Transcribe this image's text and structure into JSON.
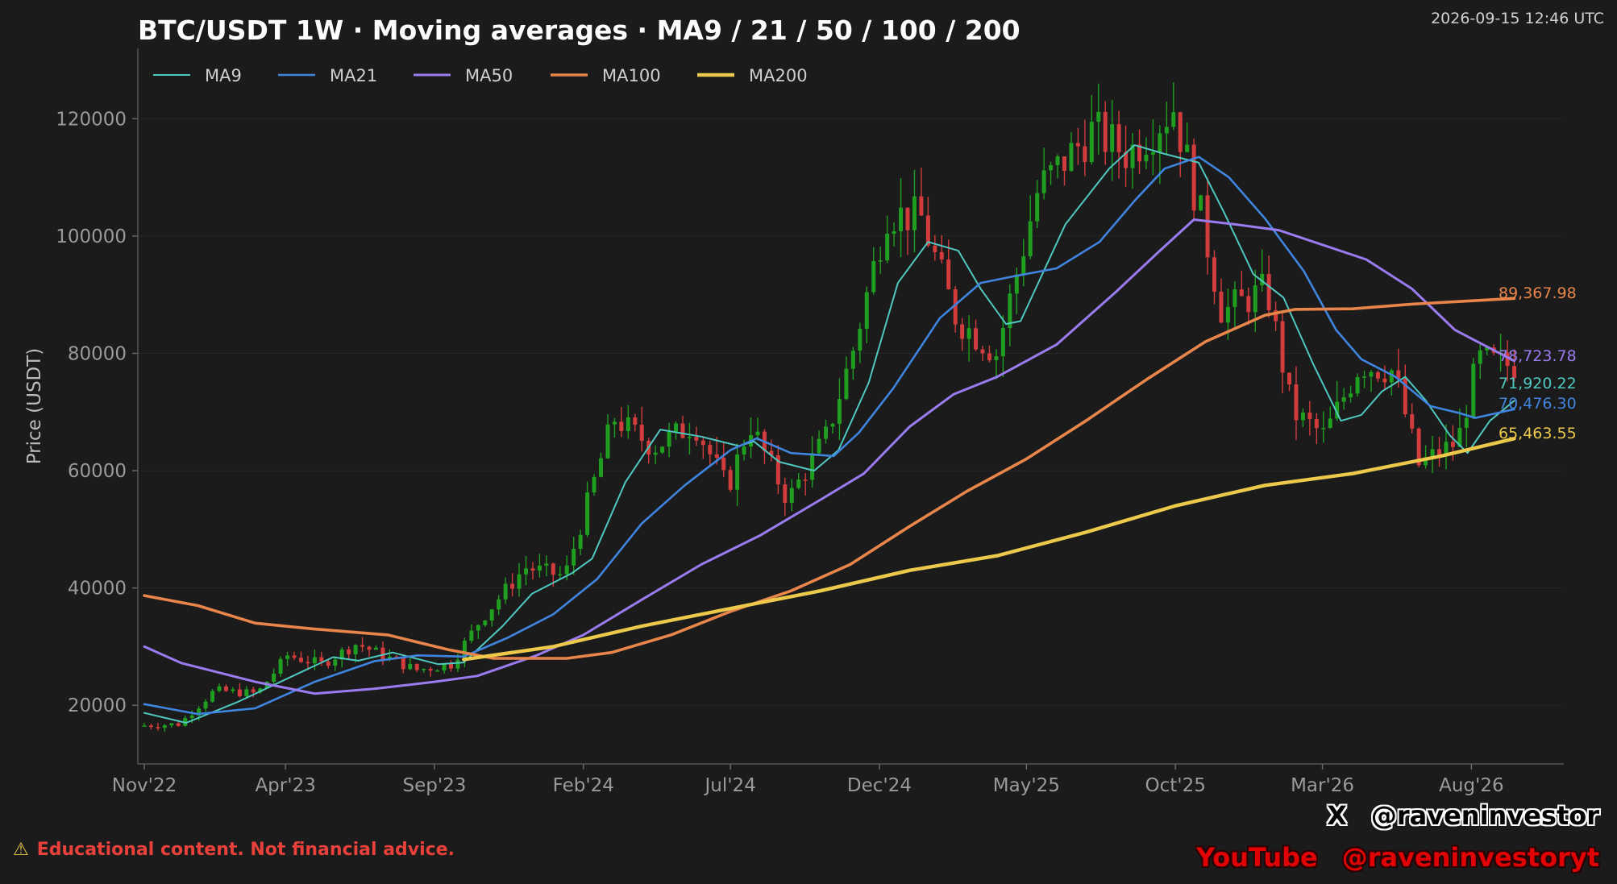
{
  "header": {
    "title": "BTC/USDT 1W · Moving averages · MA9 / 21 / 50 / 100 / 200",
    "timestamp": "2026-09-15 12:46 UTC"
  },
  "footer": {
    "warning_icon": "⚠",
    "disclaimer": "Educational content. Not financial advice.",
    "x_logo": "X",
    "x_handle": "@raveninvestor",
    "youtube_label": "YouTube",
    "youtube_handle": "@raveninvestoryt"
  },
  "chart_data": {
    "type": "line",
    "subtype": "candlestick with moving averages",
    "ylabel": "Price (USDT)",
    "xlabel": "",
    "ylim": [
      10000,
      132000
    ],
    "yticks": [
      20000,
      40000,
      60000,
      80000,
      100000,
      120000
    ],
    "x_start": "2022-11-07",
    "x_end": "2026-09-21",
    "xticks": [
      {
        "date": "2022-11-07",
        "label": "Nov'22"
      },
      {
        "date": "2023-04-01",
        "label": "Apr'23"
      },
      {
        "date": "2023-09-01",
        "label": "Sep'23"
      },
      {
        "date": "2024-02-01",
        "label": "Feb'24"
      },
      {
        "date": "2024-07-01",
        "label": "Jul'24"
      },
      {
        "date": "2024-12-01",
        "label": "Dec'24"
      },
      {
        "date": "2025-05-01",
        "label": "May'25"
      },
      {
        "date": "2025-10-01",
        "label": "Oct'25"
      },
      {
        "date": "2026-03-01",
        "label": "Mar'26"
      },
      {
        "date": "2026-08-01",
        "label": "Aug'26"
      }
    ],
    "grid": true,
    "legend_position": "top-left",
    "candle_up_color": "#1f9e1f",
    "candle_down_color": "#d23c3c",
    "price_anchors": [
      {
        "date": "2022-11-07",
        "value": 16500
      },
      {
        "date": "2022-12-20",
        "value": 16800
      },
      {
        "date": "2023-01-25",
        "value": 22500
      },
      {
        "date": "2023-03-10",
        "value": 22000
      },
      {
        "date": "2023-04-10",
        "value": 28500
      },
      {
        "date": "2023-05-15",
        "value": 27000
      },
      {
        "date": "2023-06-20",
        "value": 30500
      },
      {
        "date": "2023-08-20",
        "value": 26000
      },
      {
        "date": "2023-09-25",
        "value": 27000
      },
      {
        "date": "2023-10-25",
        "value": 34500
      },
      {
        "date": "2023-12-10",
        "value": 43500
      },
      {
        "date": "2024-01-20",
        "value": 42000
      },
      {
        "date": "2024-03-10",
        "value": 69000
      },
      {
        "date": "2024-04-20",
        "value": 64000
      },
      {
        "date": "2024-06-01",
        "value": 68000
      },
      {
        "date": "2024-07-05",
        "value": 57000
      },
      {
        "date": "2024-07-28",
        "value": 68000
      },
      {
        "date": "2024-09-05",
        "value": 55000
      },
      {
        "date": "2024-10-15",
        "value": 66000
      },
      {
        "date": "2024-11-10",
        "value": 80000
      },
      {
        "date": "2024-12-16",
        "value": 104000
      },
      {
        "date": "2025-01-20",
        "value": 103000
      },
      {
        "date": "2025-02-25",
        "value": 86000
      },
      {
        "date": "2025-04-07",
        "value": 80000
      },
      {
        "date": "2025-05-20",
        "value": 108000
      },
      {
        "date": "2025-07-15",
        "value": 118000
      },
      {
        "date": "2025-08-20",
        "value": 114000
      },
      {
        "date": "2025-10-06",
        "value": 122000
      },
      {
        "date": "2025-11-05",
        "value": 102000
      },
      {
        "date": "2025-11-25",
        "value": 87000
      },
      {
        "date": "2026-01-10",
        "value": 91000
      },
      {
        "date": "2026-02-05",
        "value": 70000
      },
      {
        "date": "2026-03-10",
        "value": 66000
      },
      {
        "date": "2026-04-15",
        "value": 78000
      },
      {
        "date": "2026-05-20",
        "value": 77000
      },
      {
        "date": "2026-06-15",
        "value": 61000
      },
      {
        "date": "2026-07-25",
        "value": 65000
      },
      {
        "date": "2026-08-15",
        "value": 79000
      },
      {
        "date": "2026-09-14",
        "value": 78000
      }
    ],
    "series": [
      {
        "name": "MA9",
        "color": "#4fc8c0",
        "last_label": "71,920.22",
        "points": [
          {
            "date": "2022-11-07",
            "value": 18700
          },
          {
            "date": "2022-12-20",
            "value": 17000
          },
          {
            "date": "2023-02-10",
            "value": 20500
          },
          {
            "date": "2023-04-15",
            "value": 25500
          },
          {
            "date": "2023-05-20",
            "value": 28200
          },
          {
            "date": "2023-06-15",
            "value": 27600
          },
          {
            "date": "2023-07-20",
            "value": 29000
          },
          {
            "date": "2023-09-05",
            "value": 27000
          },
          {
            "date": "2023-10-01",
            "value": 27300
          },
          {
            "date": "2023-11-10",
            "value": 33500
          },
          {
            "date": "2023-12-10",
            "value": 39000
          },
          {
            "date": "2024-01-20",
            "value": 42500
          },
          {
            "date": "2024-02-10",
            "value": 45000
          },
          {
            "date": "2024-03-15",
            "value": 58000
          },
          {
            "date": "2024-04-20",
            "value": 67000
          },
          {
            "date": "2024-06-01",
            "value": 65800
          },
          {
            "date": "2024-07-10",
            "value": 64200
          },
          {
            "date": "2024-07-25",
            "value": 65000
          },
          {
            "date": "2024-08-20",
            "value": 61500
          },
          {
            "date": "2024-09-25",
            "value": 60000
          },
          {
            "date": "2024-10-20",
            "value": 63500
          },
          {
            "date": "2024-11-20",
            "value": 75000
          },
          {
            "date": "2024-12-20",
            "value": 92000
          },
          {
            "date": "2025-01-20",
            "value": 99000
          },
          {
            "date": "2025-02-20",
            "value": 97500
          },
          {
            "date": "2025-03-15",
            "value": 91000
          },
          {
            "date": "2025-04-10",
            "value": 85000
          },
          {
            "date": "2025-04-25",
            "value": 85500
          },
          {
            "date": "2025-06-10",
            "value": 102000
          },
          {
            "date": "2025-07-25",
            "value": 111500
          },
          {
            "date": "2025-08-20",
            "value": 115500
          },
          {
            "date": "2025-09-20",
            "value": 114000
          },
          {
            "date": "2025-10-25",
            "value": 112500
          },
          {
            "date": "2025-11-20",
            "value": 104000
          },
          {
            "date": "2025-12-20",
            "value": 93500
          },
          {
            "date": "2026-01-20",
            "value": 89500
          },
          {
            "date": "2026-02-20",
            "value": 78000
          },
          {
            "date": "2026-03-20",
            "value": 68500
          },
          {
            "date": "2026-04-10",
            "value": 69500
          },
          {
            "date": "2026-05-01",
            "value": 73500
          },
          {
            "date": "2026-05-25",
            "value": 76000
          },
          {
            "date": "2026-06-15",
            "value": 72000
          },
          {
            "date": "2026-07-10",
            "value": 66000
          },
          {
            "date": "2026-07-28",
            "value": 63000
          },
          {
            "date": "2026-08-20",
            "value": 68500
          },
          {
            "date": "2026-09-14",
            "value": 71920.22
          }
        ]
      },
      {
        "name": "MA21",
        "color": "#3f84de",
        "last_label": "70,476.30",
        "points": [
          {
            "date": "2022-11-07",
            "value": 20200
          },
          {
            "date": "2023-01-01",
            "value": 18500
          },
          {
            "date": "2023-03-01",
            "value": 19500
          },
          {
            "date": "2023-05-01",
            "value": 24000
          },
          {
            "date": "2023-07-01",
            "value": 27500
          },
          {
            "date": "2023-08-15",
            "value": 28500
          },
          {
            "date": "2023-10-01",
            "value": 28300
          },
          {
            "date": "2023-11-15",
            "value": 31500
          },
          {
            "date": "2024-01-01",
            "value": 35500
          },
          {
            "date": "2024-02-15",
            "value": 41500
          },
          {
            "date": "2024-04-01",
            "value": 51000
          },
          {
            "date": "2024-05-15",
            "value": 57500
          },
          {
            "date": "2024-07-01",
            "value": 63500
          },
          {
            "date": "2024-07-28",
            "value": 65500
          },
          {
            "date": "2024-09-01",
            "value": 63000
          },
          {
            "date": "2024-10-15",
            "value": 62500
          },
          {
            "date": "2024-11-10",
            "value": 66500
          },
          {
            "date": "2024-12-15",
            "value": 74000
          },
          {
            "date": "2025-02-01",
            "value": 86000
          },
          {
            "date": "2025-03-15",
            "value": 92000
          },
          {
            "date": "2025-04-20",
            "value": 93200
          },
          {
            "date": "2025-06-01",
            "value": 94500
          },
          {
            "date": "2025-07-15",
            "value": 99000
          },
          {
            "date": "2025-08-20",
            "value": 106000
          },
          {
            "date": "2025-09-20",
            "value": 111500
          },
          {
            "date": "2025-10-25",
            "value": 113500
          },
          {
            "date": "2025-11-25",
            "value": 110000
          },
          {
            "date": "2026-01-01",
            "value": 103000
          },
          {
            "date": "2026-02-10",
            "value": 94000
          },
          {
            "date": "2026-03-15",
            "value": 84000
          },
          {
            "date": "2026-04-10",
            "value": 79000
          },
          {
            "date": "2026-05-15",
            "value": 76000
          },
          {
            "date": "2026-06-20",
            "value": 71000
          },
          {
            "date": "2026-07-20",
            "value": 69800
          },
          {
            "date": "2026-08-05",
            "value": 69000
          },
          {
            "date": "2026-09-14",
            "value": 70476.3
          }
        ]
      },
      {
        "name": "MA50",
        "color": "#9b7cf0",
        "last_label": "78,723.78",
        "points": [
          {
            "date": "2022-11-07",
            "value": 30000
          },
          {
            "date": "2022-12-15",
            "value": 27200
          },
          {
            "date": "2023-03-01",
            "value": 24000
          },
          {
            "date": "2023-05-01",
            "value": 22000
          },
          {
            "date": "2023-07-01",
            "value": 22800
          },
          {
            "date": "2023-09-01",
            "value": 24000
          },
          {
            "date": "2023-10-15",
            "value": 25000
          },
          {
            "date": "2023-12-15",
            "value": 28500
          },
          {
            "date": "2024-02-01",
            "value": 32000
          },
          {
            "date": "2024-04-01",
            "value": 38000
          },
          {
            "date": "2024-06-01",
            "value": 44000
          },
          {
            "date": "2024-08-01",
            "value": 49000
          },
          {
            "date": "2024-10-01",
            "value": 55000
          },
          {
            "date": "2024-11-15",
            "value": 59500
          },
          {
            "date": "2025-01-01",
            "value": 67500
          },
          {
            "date": "2025-02-15",
            "value": 73000
          },
          {
            "date": "2025-04-01",
            "value": 76000
          },
          {
            "date": "2025-06-01",
            "value": 81500
          },
          {
            "date": "2025-08-01",
            "value": 90500
          },
          {
            "date": "2025-09-15",
            "value": 97500
          },
          {
            "date": "2025-10-20",
            "value": 102800
          },
          {
            "date": "2025-12-01",
            "value": 102000
          },
          {
            "date": "2026-01-15",
            "value": 101000
          },
          {
            "date": "2026-03-01",
            "value": 98500
          },
          {
            "date": "2026-04-15",
            "value": 96000
          },
          {
            "date": "2026-06-01",
            "value": 91000
          },
          {
            "date": "2026-07-15",
            "value": 84000
          },
          {
            "date": "2026-09-14",
            "value": 78723.78
          }
        ]
      },
      {
        "name": "MA100",
        "color": "#e8854a",
        "last_label": "89,367.98",
        "points": [
          {
            "date": "2022-11-07",
            "value": 38700
          },
          {
            "date": "2023-01-01",
            "value": 37000
          },
          {
            "date": "2023-03-01",
            "value": 34000
          },
          {
            "date": "2023-05-01",
            "value": 33000
          },
          {
            "date": "2023-07-15",
            "value": 32000
          },
          {
            "date": "2023-09-15",
            "value": 29500
          },
          {
            "date": "2023-11-01",
            "value": 28000
          },
          {
            "date": "2024-01-15",
            "value": 28000
          },
          {
            "date": "2024-03-01",
            "value": 29000
          },
          {
            "date": "2024-05-01",
            "value": 32000
          },
          {
            "date": "2024-07-01",
            "value": 36000
          },
          {
            "date": "2024-09-01",
            "value": 39500
          },
          {
            "date": "2024-11-01",
            "value": 44000
          },
          {
            "date": "2025-01-01",
            "value": 50500
          },
          {
            "date": "2025-03-01",
            "value": 56500
          },
          {
            "date": "2025-05-01",
            "value": 62000
          },
          {
            "date": "2025-07-01",
            "value": 68500
          },
          {
            "date": "2025-09-01",
            "value": 75500
          },
          {
            "date": "2025-11-01",
            "value": 82000
          },
          {
            "date": "2026-01-01",
            "value": 86500
          },
          {
            "date": "2026-02-01",
            "value": 87500
          },
          {
            "date": "2026-04-01",
            "value": 87600
          },
          {
            "date": "2026-06-01",
            "value": 88400
          },
          {
            "date": "2026-09-14",
            "value": 89367.98
          }
        ]
      },
      {
        "name": "MA200",
        "color": "#ecc94b",
        "last_label": "65,463.55",
        "points": [
          {
            "date": "2023-10-01",
            "value": 27800
          },
          {
            "date": "2024-01-01",
            "value": 30000
          },
          {
            "date": "2024-04-01",
            "value": 33500
          },
          {
            "date": "2024-07-01",
            "value": 36500
          },
          {
            "date": "2024-10-01",
            "value": 39500
          },
          {
            "date": "2025-01-01",
            "value": 43000
          },
          {
            "date": "2025-04-01",
            "value": 45500
          },
          {
            "date": "2025-07-01",
            "value": 49500
          },
          {
            "date": "2025-10-01",
            "value": 54000
          },
          {
            "date": "2026-01-01",
            "value": 57500
          },
          {
            "date": "2026-04-01",
            "value": 59500
          },
          {
            "date": "2026-07-01",
            "value": 62500
          },
          {
            "date": "2026-09-14",
            "value": 65463.55
          }
        ]
      }
    ]
  }
}
